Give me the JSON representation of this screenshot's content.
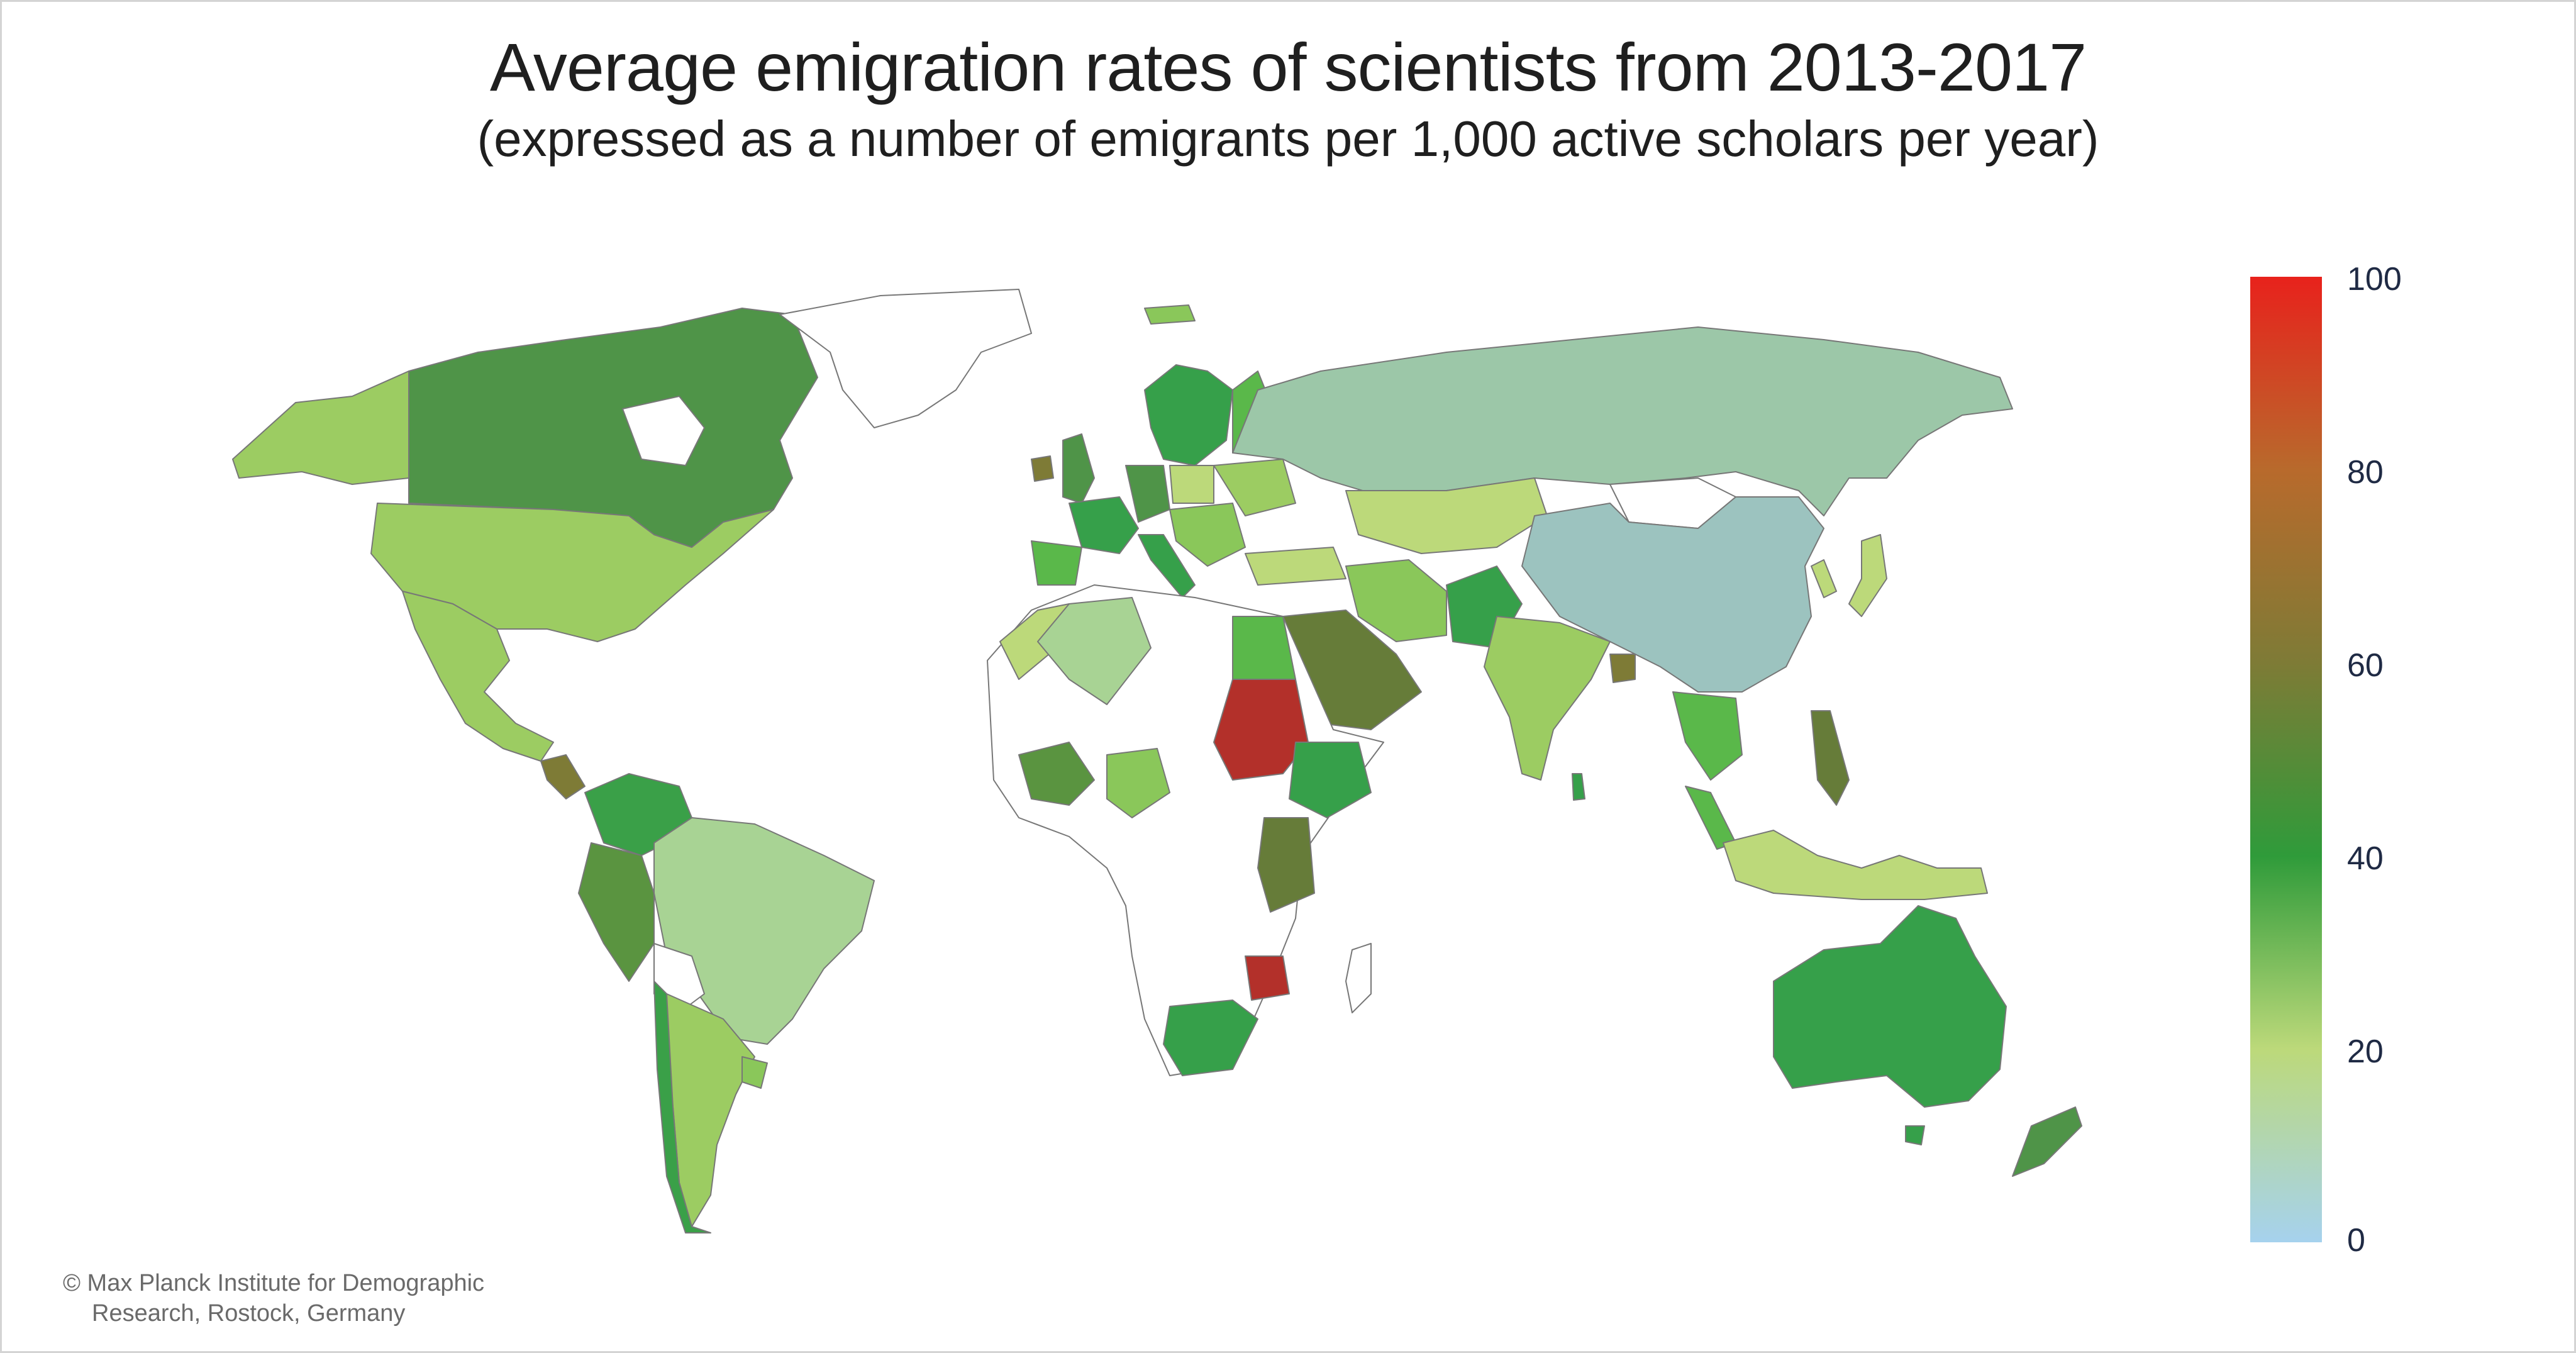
{
  "title": "Average emigration rates of scientists from 2013-2017",
  "subtitle": "(expressed as a number of emigrants per 1,000 active scholars per year)",
  "legend": {
    "ticks": [
      "100",
      "80",
      "60",
      "40",
      "20",
      "0"
    ],
    "min": 0,
    "max": 100,
    "colors": {
      "at_100": "#e8221c",
      "at_80": "#b86a2c",
      "at_60": "#7e7b36",
      "at_40": "#2f9b3a",
      "at_20": "#bcd97a",
      "at_0": "#a6d2ee"
    }
  },
  "credit": {
    "line1": "© Max Planck Institute for Demographic",
    "line2": "Research, Rostock, Germany"
  },
  "map_colors": {
    "no_data": "#ffffff",
    "russia": "#9cc7a8",
    "china": "#9cc3bf",
    "canada": "#4f9448",
    "usa": "#9ccc62",
    "brazil": "#a8d394",
    "australia": "#36a04a",
    "sudan": "#b3302a",
    "zimbabwe": "#b3302a",
    "saudi_arabia": "#667c39",
    "greenland": "#ffffff"
  }
}
